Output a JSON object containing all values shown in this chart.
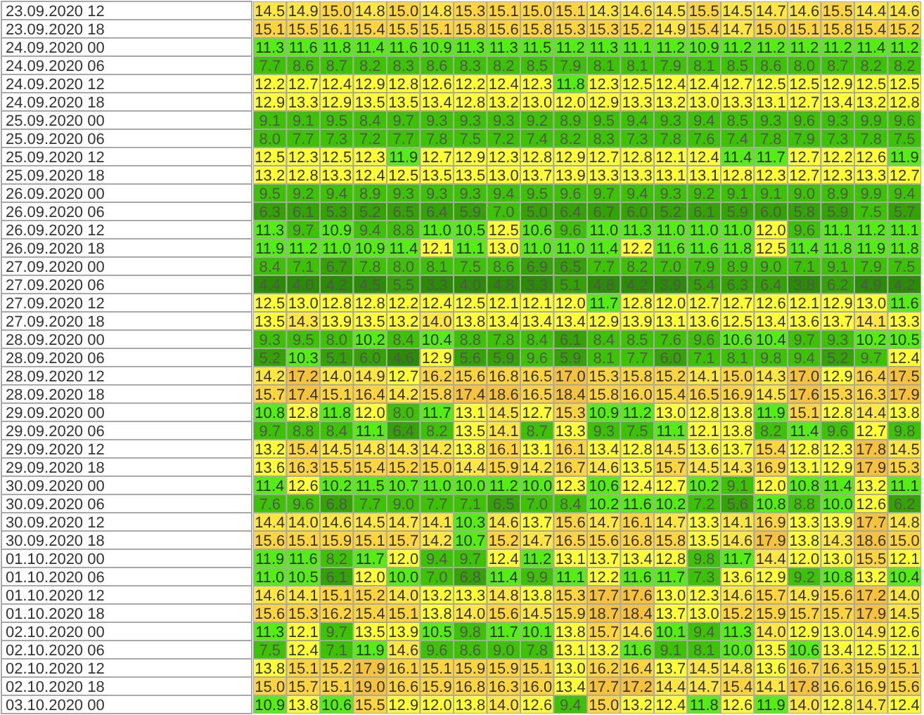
{
  "chart_data": {
    "type": "heatmap",
    "tick_labels": "y",
    "data_labels": true,
    "categories": [
      null,
      null,
      null,
      null,
      null,
      null,
      null,
      null,
      null,
      null,
      null,
      null,
      null,
      null,
      null,
      null,
      null,
      null,
      null,
      null
    ],
    "y_categories": [
      "23.09.2020 12",
      "23.09.2020 18",
      "24.09.2020 00",
      "24.09.2020 06",
      "24.09.2020 12",
      "24.09.2020 18",
      "25.09.2020 00",
      "25.09.2020 06",
      "25.09.2020 12",
      "25.09.2020 18",
      "26.09.2020 00",
      "26.09.2020 06",
      "26.09.2020 12",
      "26.09.2020 18",
      "27.09.2020 00",
      "27.09.2020 06",
      "27.09.2020 12",
      "27.09.2020 18",
      "28.09.2020 00",
      "28.09.2020 06",
      "28.09.2020 12",
      "28.09.2020 18",
      "29.09.2020 00",
      "29.09.2020 06",
      "29.09.2020 12",
      "29.09.2020 18",
      "30.09.2020 00",
      "30.09.2020 06",
      "30.09.2020 12",
      "30.09.2020 18",
      "01.10.2020 00",
      "01.10.2020 06",
      "01.10.2020 12",
      "01.10.2020 18",
      "02.10.2020 00",
      "02.10.2020 06",
      "02.10.2020 12",
      "02.10.2020 18",
      "03.10.2020 00"
    ],
    "cells": [
      [
        14.5,
        14.9,
        15.0,
        14.8,
        15.0,
        14.8,
        15.3,
        15.1,
        15.0,
        15.1,
        14.3,
        14.6,
        14.5,
        15.5,
        14.5,
        14.7,
        14.6,
        15.5,
        14.4,
        14.6
      ],
      [
        15.1,
        15.5,
        16.1,
        15.4,
        15.5,
        15.1,
        15.8,
        15.6,
        15.8,
        15.3,
        15.3,
        15.2,
        14.9,
        15.4,
        14.7,
        15.0,
        15.1,
        15.8,
        15.4,
        15.2
      ],
      [
        11.3,
        11.6,
        11.8,
        11.4,
        11.6,
        10.9,
        11.3,
        11.3,
        11.5,
        11.2,
        11.3,
        11.1,
        11.2,
        10.9,
        11.2,
        11.2,
        11.2,
        11.2,
        11.4,
        11.2
      ],
      [
        7.7,
        8.6,
        8.7,
        8.2,
        8.3,
        8.6,
        8.3,
        8.2,
        8.5,
        7.9,
        8.1,
        8.1,
        7.9,
        8.1,
        8.5,
        8.6,
        8.0,
        8.7,
        8.2,
        8.2
      ],
      [
        12.2,
        12.7,
        12.4,
        12.9,
        12.8,
        12.6,
        12.2,
        12.4,
        12.3,
        11.8,
        12.3,
        12.5,
        12.4,
        12.4,
        12.7,
        12.5,
        12.5,
        12.9,
        12.5,
        12.5
      ],
      [
        12.9,
        13.3,
        12.9,
        13.5,
        13.5,
        13.4,
        12.8,
        13.2,
        13.0,
        12.0,
        12.9,
        13.3,
        13.2,
        13.0,
        13.3,
        13.1,
        12.7,
        13.4,
        13.2,
        12.8
      ],
      [
        9.1,
        9.1,
        9.5,
        8.4,
        9.7,
        9.3,
        9.3,
        9.3,
        9.2,
        8.9,
        9.5,
        9.4,
        9.3,
        9.4,
        8.5,
        9.3,
        9.6,
        9.3,
        9.9,
        9.6
      ],
      [
        8.0,
        7.7,
        7.3,
        7.2,
        7.7,
        7.8,
        7.5,
        7.2,
        7.4,
        8.2,
        8.3,
        7.3,
        7.8,
        7.6,
        7.4,
        7.8,
        7.9,
        7.3,
        7.8,
        7.5
      ],
      [
        12.5,
        12.3,
        12.5,
        12.3,
        11.9,
        12.7,
        12.9,
        12.3,
        12.8,
        12.9,
        12.7,
        12.8,
        12.1,
        12.4,
        11.4,
        11.7,
        12.7,
        12.2,
        12.6,
        11.9
      ],
      [
        13.2,
        12.8,
        13.3,
        12.4,
        12.5,
        13.5,
        13.5,
        13.0,
        13.7,
        13.9,
        13.3,
        13.3,
        13.1,
        13.1,
        12.8,
        12.3,
        12.7,
        12.3,
        13.3,
        12.7
      ],
      [
        9.5,
        9.2,
        9.4,
        8.9,
        9.3,
        9.3,
        9.3,
        9.4,
        9.5,
        9.6,
        9.7,
        9.4,
        9.3,
        9.2,
        9.1,
        9.1,
        9.0,
        8.9,
        9.9,
        9.4
      ],
      [
        6.3,
        6.1,
        5.3,
        5.2,
        6.5,
        6.4,
        5.9,
        7.0,
        5.0,
        6.4,
        6.7,
        6.0,
        5.2,
        6.1,
        5.9,
        6.0,
        5.8,
        5.9,
        7.5,
        5.7
      ],
      [
        11.3,
        9.7,
        10.9,
        9.4,
        8.8,
        11.0,
        10.5,
        12.5,
        10.6,
        9.6,
        11.0,
        11.3,
        11.0,
        11.0,
        11.0,
        12.0,
        9.6,
        11.1,
        11.2,
        11.1
      ],
      [
        11.9,
        11.2,
        11.0,
        10.9,
        11.4,
        12.1,
        11.1,
        13.0,
        11.0,
        11.0,
        11.4,
        12.2,
        11.6,
        11.6,
        11.8,
        12.5,
        11.4,
        11.8,
        11.9,
        11.8
      ],
      [
        8.4,
        7.1,
        6.7,
        7.8,
        8.0,
        8.1,
        7.5,
        8.6,
        6.9,
        6.5,
        7.7,
        8.2,
        7.0,
        7.9,
        8.9,
        9.0,
        7.1,
        9.1,
        7.9,
        7.5
      ],
      [
        4.4,
        4.0,
        4.2,
        4.5,
        5.5,
        3.3,
        4.0,
        4.8,
        3.3,
        5.1,
        4.8,
        4.2,
        3.9,
        5.4,
        6.3,
        6.4,
        3.8,
        6.2,
        4.9,
        4.2
      ],
      [
        12.5,
        13.0,
        12.8,
        12.8,
        12.2,
        12.4,
        12.5,
        12.1,
        12.1,
        12.0,
        11.7,
        12.8,
        12.0,
        12.7,
        12.7,
        12.6,
        12.1,
        12.9,
        13.0,
        11.6
      ],
      [
        13.5,
        14.3,
        13.9,
        13.5,
        13.2,
        14.0,
        13.8,
        13.4,
        13.4,
        13.4,
        12.9,
        13.9,
        13.1,
        13.6,
        12.5,
        13.4,
        13.6,
        13.7,
        14.1,
        13.3
      ],
      [
        9.3,
        9.5,
        8.0,
        10.2,
        8.4,
        10.4,
        8.8,
        7.8,
        8.4,
        6.1,
        8.4,
        8.5,
        7.6,
        9.6,
        10.6,
        10.4,
        9.7,
        9.3,
        10.2,
        10.5
      ],
      [
        5.2,
        10.3,
        5.1,
        6.0,
        4.6,
        12.9,
        5.6,
        5.9,
        9.6,
        5.9,
        8.1,
        7.7,
        6.0,
        7.1,
        8.1,
        9.8,
        9.4,
        5.2,
        9.7,
        12.4
      ],
      [
        14.2,
        17.2,
        14.0,
        14.9,
        12.7,
        16.2,
        15.6,
        16.8,
        16.5,
        17.0,
        15.3,
        15.8,
        15.2,
        14.1,
        15.0,
        14.3,
        17.0,
        12.9,
        16.4,
        17.5
      ],
      [
        15.7,
        17.4,
        15.1,
        16.4,
        14.2,
        15.8,
        17.4,
        18.6,
        16.5,
        18.4,
        15.8,
        16.0,
        15.4,
        16.5,
        16.9,
        14.5,
        17.6,
        15.3,
        16.3,
        17.9
      ],
      [
        10.8,
        12.8,
        11.8,
        12.0,
        8.0,
        11.7,
        13.1,
        14.5,
        12.7,
        15.3,
        10.9,
        11.2,
        13.0,
        12.8,
        13.8,
        11.9,
        15.1,
        12.8,
        14.4,
        13.8
      ],
      [
        9.7,
        8.8,
        8.4,
        11.1,
        6.4,
        8.2,
        13.5,
        14.1,
        8.7,
        13.3,
        9.3,
        7.5,
        11.1,
        12.1,
        13.8,
        8.2,
        11.4,
        9.6,
        12.7,
        9.8
      ],
      [
        13.2,
        15.4,
        14.5,
        14.8,
        14.3,
        14.2,
        13.8,
        16.1,
        13.1,
        16.1,
        13.4,
        12.8,
        14.5,
        13.6,
        13.7,
        15.4,
        12.8,
        12.3,
        17.8,
        14.5
      ],
      [
        13.6,
        16.3,
        15.5,
        15.4,
        15.2,
        15.0,
        14.4,
        15.9,
        14.2,
        16.7,
        14.6,
        13.5,
        15.7,
        14.5,
        14.3,
        16.9,
        13.1,
        12.9,
        17.9,
        15.3
      ],
      [
        11.4,
        12.6,
        10.2,
        11.5,
        10.7,
        11.0,
        10.0,
        11.2,
        10.0,
        12.3,
        10.6,
        12.4,
        12.7,
        10.2,
        9.1,
        12.0,
        10.8,
        11.4,
        13.2,
        11.1
      ],
      [
        7.6,
        9.6,
        6.8,
        7.7,
        9.0,
        7.7,
        7.1,
        6.5,
        7.0,
        8.4,
        10.2,
        11.6,
        10.2,
        7.2,
        5.6,
        10.8,
        8.8,
        10.0,
        12.6,
        6.2
      ],
      [
        14.4,
        14.0,
        14.6,
        14.5,
        14.7,
        14.1,
        10.3,
        14.6,
        13.7,
        15.6,
        14.7,
        16.1,
        14.7,
        13.3,
        14.1,
        16.9,
        13.3,
        13.9,
        17.7,
        14.8
      ],
      [
        15.6,
        15.1,
        15.9,
        15.1,
        15.7,
        14.2,
        10.7,
        15.2,
        14.7,
        16.5,
        15.6,
        16.8,
        15.8,
        13.5,
        14.6,
        17.9,
        13.8,
        14.3,
        18.6,
        15.0
      ],
      [
        11.9,
        11.6,
        8.2,
        11.7,
        12.0,
        9.4,
        9.7,
        12.4,
        11.2,
        13.1,
        13.7,
        13.4,
        12.8,
        9.8,
        11.7,
        14.4,
        12.0,
        13.0,
        15.5,
        12.1
      ],
      [
        11.0,
        10.5,
        6.1,
        12.0,
        10.0,
        7.0,
        6.8,
        11.4,
        9.9,
        11.1,
        12.2,
        11.6,
        11.7,
        7.3,
        13.6,
        12.9,
        9.2,
        10.8,
        13.2,
        10.4
      ],
      [
        14.6,
        14.1,
        15.1,
        15.2,
        14.0,
        13.2,
        13.3,
        14.8,
        13.8,
        15.3,
        17.7,
        17.6,
        13.0,
        12.3,
        14.6,
        15.7,
        14.9,
        15.6,
        17.2,
        14.0
      ],
      [
        15.6,
        15.3,
        16.2,
        15.4,
        15.1,
        13.8,
        14.0,
        15.6,
        14.5,
        15.9,
        18.7,
        18.4,
        13.7,
        13.0,
        15.2,
        15.9,
        15.7,
        15.7,
        17.9,
        14.5
      ],
      [
        11.3,
        12.1,
        9.7,
        13.5,
        13.9,
        10.5,
        9.8,
        11.7,
        10.1,
        13.8,
        15.7,
        14.6,
        10.1,
        9.4,
        11.3,
        14.0,
        12.9,
        13.0,
        14.9,
        12.6
      ],
      [
        7.5,
        12.4,
        7.1,
        11.9,
        14.6,
        9.6,
        8.6,
        9.0,
        7.8,
        13.1,
        13.2,
        11.6,
        9.1,
        8.1,
        10.0,
        13.5,
        10.6,
        13.4,
        12.5,
        12.1
      ],
      [
        13.8,
        15.1,
        15.2,
        17.9,
        16.1,
        15.1,
        15.9,
        15.9,
        15.1,
        13.0,
        16.2,
        16.4,
        13.7,
        14.5,
        14.8,
        13.6,
        16.7,
        16.3,
        15.9,
        15.1
      ],
      [
        15.0,
        15.7,
        15.1,
        19.0,
        16.6,
        15.9,
        16.8,
        16.3,
        16.0,
        13.4,
        17.7,
        17.2,
        14.4,
        14.7,
        15.4,
        14.1,
        17.8,
        16.6,
        16.9,
        15.6
      ],
      [
        10.9,
        13.8,
        10.6,
        15.5,
        12.9,
        12.0,
        13.8,
        14.0,
        12.6,
        9.4,
        15.0,
        13.2,
        12.4,
        11.8,
        12.6,
        11.9,
        14.0,
        12.8,
        14.7,
        12.4
      ]
    ],
    "cell_labels": [
      [
        "14.5",
        "14.9",
        "15.0",
        "14.8",
        "15.0",
        "14.8",
        "15.3",
        "15.1",
        "15.0",
        "15.1",
        "14.3",
        "14.6",
        "14.5",
        "15.5",
        "14.5",
        "14.7",
        "14.6",
        "15.5",
        "14.4",
        "14.6"
      ],
      [
        "15.1",
        "15.5",
        "16.1",
        "15.4",
        "15.5",
        "15.1",
        "15.8",
        "15.6",
        "15.8",
        "15.3",
        "15.3",
        "15.2",
        "14.9",
        "15.4",
        "14.7",
        "15.0",
        "15.1",
        "15.8",
        "15.4",
        "15.2"
      ],
      [
        "11.3",
        "11.6",
        "11.8",
        "11.4",
        "11.6",
        "10.9",
        "11.3",
        "11.3",
        "11.5",
        "11.2",
        "11.3",
        "11.1",
        "11.2",
        "10.9",
        "11.2",
        "11.2",
        "11.2",
        "11.2",
        "11.4",
        "11.2"
      ],
      [
        "7.7",
        "8.6",
        "8.7",
        "8.2",
        "8.3",
        "8.6",
        "8.3",
        "8.2",
        "8.5",
        "7.9",
        "8.1",
        "8.1",
        "7.9",
        "8.1",
        "8.5",
        "8.6",
        "8.0",
        "8.7",
        "8.2",
        "8.2"
      ],
      [
        "12.2",
        "12.7",
        "12.4",
        "12.9",
        "12.8",
        "12.6",
        "12.2",
        "12.4",
        "12.3",
        "11.8",
        "12.3",
        "12.5",
        "12.4",
        "12.4",
        "12.7",
        "12.5",
        "12.5",
        "12.9",
        "12.5",
        "12.5"
      ],
      [
        "12.9",
        "13.3",
        "12.9",
        "13.5",
        "13.5",
        "13.4",
        "12.8",
        "13.2",
        "13.0",
        "12.0",
        "12.9",
        "13.3",
        "13.2",
        "13.0",
        "13.3",
        "13.1",
        "12.7",
        "13.4",
        "13.2",
        "12.8"
      ],
      [
        "9.1",
        "9.1",
        "9.5",
        "8.4",
        "9.7",
        "9.3",
        "9.3",
        "9.3",
        "9.2",
        "8.9",
        "9.5",
        "9.4",
        "9.3",
        "9.4",
        "8.5",
        "9.3",
        "9.6",
        "9.3",
        "9.9",
        "9.6"
      ],
      [
        "8.0",
        "7.7",
        "7.3",
        "7.2",
        "7.7",
        "7.8",
        "7.5",
        "7.2",
        "7.4",
        "8.2",
        "8.3",
        "7.3",
        "7.8",
        "7.6",
        "7.4",
        "7.8",
        "7.9",
        "7.3",
        "7.8",
        "7.5"
      ],
      [
        "12.5",
        "12.3",
        "12.5",
        "12.3",
        "11.9",
        "12.7",
        "12.9",
        "12.3",
        "12.8",
        "12.9",
        "12.7",
        "12.8",
        "12.1",
        "12.4",
        "11.4",
        "11.7",
        "12.7",
        "12.2",
        "12.6",
        "11.9"
      ],
      [
        "13.2",
        "12.8",
        "13.3",
        "12.4",
        "12.5",
        "13.5",
        "13.5",
        "13.0",
        "13.7",
        "13.9",
        "13.3",
        "13.3",
        "13.1",
        "13.1",
        "12.8",
        "12.3",
        "12.7",
        "12.3",
        "13.3",
        "12.7"
      ],
      [
        "9.5",
        "9.2",
        "9.4",
        "8.9",
        "9.3",
        "9.3",
        "9.3",
        "9.4",
        "9.5",
        "9.6",
        "9.7",
        "9.4",
        "9.3",
        "9.2",
        "9.1",
        "9.1",
        "9.0",
        "8.9",
        "9.9",
        "9.4"
      ],
      [
        "6.3",
        "6.1",
        "5.3",
        "5.2",
        "6.5",
        "6.4",
        "5.9",
        "7.0",
        "5.0",
        "6.4",
        "6.7",
        "6.0",
        "5.2",
        "6.1",
        "5.9",
        "6.0",
        "5.8",
        "5.9",
        "7.5",
        "5.7"
      ],
      [
        "11.3",
        "9.7",
        "10.9",
        "9.4",
        "8.8",
        "11.0",
        "10.5",
        "12.5",
        "10.6",
        "9.6",
        "11.0",
        "11.3",
        "11.0",
        "11.0",
        "11.0",
        "12.0",
        "9.6",
        "11.1",
        "11.2",
        "11.1"
      ],
      [
        "11.9",
        "11.2",
        "11.0",
        "10.9",
        "11.4",
        "12.1",
        "11.1",
        "13.0",
        "11.0",
        "11.0",
        "11.4",
        "12.2",
        "11.6",
        "11.6",
        "11.8",
        "12.5",
        "11.4",
        "11.8",
        "11.9",
        "11.8"
      ],
      [
        "8.4",
        "7.1",
        "6.7",
        "7.8",
        "8.0",
        "8.1",
        "7.5",
        "8.6",
        "6.9",
        "6.5",
        "7.7",
        "8.2",
        "7.0",
        "7.9",
        "8.9",
        "9.0",
        "7.1",
        "9.1",
        "7.9",
        "7.5"
      ],
      [
        "4.4",
        "4.0",
        "4.2",
        "4.5",
        "5.5",
        "3.3",
        "4.0",
        "4.8",
        "3.3",
        "5.1",
        "4.8",
        "4.2",
        "3.9",
        "5.4",
        "6.3",
        "6.4",
        "3.8",
        "6.2",
        "4.9",
        "4.2"
      ],
      [
        "12.5",
        "13.0",
        "12.8",
        "12.8",
        "12.2",
        "12.4",
        "12.5",
        "12.1",
        "12.1",
        "12.0",
        "11.7",
        "12.8",
        "12.0",
        "12.7",
        "12.7",
        "12.6",
        "12.1",
        "12.9",
        "13.0",
        "11.6"
      ],
      [
        "13.5",
        "14.3",
        "13.9",
        "13.5",
        "13.2",
        "14.0",
        "13.8",
        "13.4",
        "13.4",
        "13.4",
        "12.9",
        "13.9",
        "13.1",
        "13.6",
        "12.5",
        "13.4",
        "13.6",
        "13.7",
        "14.1",
        "13.3"
      ],
      [
        "9.3",
        "9.5",
        "8.0",
        "10.2",
        "8.4",
        "10.4",
        "8.8",
        "7.8",
        "8.4",
        "6.1",
        "8.4",
        "8.5",
        "7.6",
        "9.6",
        "10.6",
        "10.4",
        "9.7",
        "9.3",
        "10.2",
        "10.5"
      ],
      [
        "5.2",
        "10.3",
        "5.1",
        "6.0",
        "4.6",
        "12.9",
        "5.6",
        "5.9",
        "9.6",
        "5.9",
        "8.1",
        "7.7",
        "6.0",
        "7.1",
        "8.1",
        "9.8",
        "9.4",
        "5.2",
        "9.7",
        "12.4"
      ],
      [
        "14.2",
        "17.2",
        "14.0",
        "14.9",
        "12.7",
        "16.2",
        "15.6",
        "16.8",
        "16.5",
        "17.0",
        "15.3",
        "15.8",
        "15.2",
        "14.1",
        "15.0",
        "14.3",
        "17.0",
        "12.9",
        "16.4",
        "17.5"
      ],
      [
        "15.7",
        "17.4",
        "15.1",
        "16.4",
        "14.2",
        "15.8",
        "17.4",
        "18.6",
        "16.5",
        "18.4",
        "15.8",
        "16.0",
        "15.4",
        "16.5",
        "16.9",
        "14.5",
        "17.6",
        "15.3",
        "16.3",
        "17.9"
      ],
      [
        "10.8",
        "12.8",
        "11.8",
        "12.0",
        "8.0",
        "11.7",
        "13.1",
        "14.5",
        "12.7",
        "15.3",
        "10.9",
        "11.2",
        "13.0",
        "12.8",
        "13.8",
        "11.9",
        "15.1",
        "12.8",
        "14.4",
        "13.8"
      ],
      [
        "9.7",
        "8.8",
        "8.4",
        "11.1",
        "6.4",
        "8.2",
        "13.5",
        "14.1",
        "8.7",
        "13.3",
        "9.3",
        "7.5",
        "11.1",
        "12.1",
        "13.8",
        "8.2",
        "11.4",
        "9.6",
        "12.7",
        "9.8"
      ],
      [
        "13.2",
        "15.4",
        "14.5",
        "14.8",
        "14.3",
        "14.2",
        "13.8",
        "16.1",
        "13.1",
        "16.1",
        "13.4",
        "12.8",
        "14.5",
        "13.6",
        "13.7",
        "15.4",
        "12.8",
        "12.3",
        "17.8",
        "14.5"
      ],
      [
        "13.6",
        "16.3",
        "15.5",
        "15.4",
        "15.2",
        "15.0",
        "14.4",
        "15.9",
        "14.2",
        "16.7",
        "14.6",
        "13.5",
        "15.7",
        "14.5",
        "14.3",
        "16.9",
        "13.1",
        "12.9",
        "17.9",
        "15.3"
      ],
      [
        "11.4",
        "12.6",
        "10.2",
        "11.5",
        "10.7",
        "11.0",
        "10.0",
        "11.2",
        "10.0",
        "12.3",
        "10.6",
        "12.4",
        "12.7",
        "10.2",
        "9.1",
        "12.0",
        "10.8",
        "11.4",
        "13.2",
        "11.1"
      ],
      [
        "7.6",
        "9.6",
        "6.8",
        "7.7",
        "9.0",
        "7.7",
        "7.1",
        "6.5",
        "7.0",
        "8.4",
        "10.2",
        "11.6",
        "10.2",
        "7.2",
        "5.6",
        "10.8",
        "8.8",
        "10.0",
        "12.6",
        "6.2"
      ],
      [
        "14.4",
        "14.0",
        "14.6",
        "14.5",
        "14.7",
        "14.1",
        "10.3",
        "14.6",
        "13.7",
        "15.6",
        "14.7",
        "16.1",
        "14.7",
        "13.3",
        "14.1",
        "16.9",
        "13.3",
        "13.9",
        "17.7",
        "14.8"
      ],
      [
        "15.6",
        "15.1",
        "15.9",
        "15.1",
        "15.7",
        "14.2",
        "10.7",
        "15.2",
        "14.7",
        "16.5",
        "15.6",
        "16.8",
        "15.8",
        "13.5",
        "14.6",
        "17.9",
        "13.8",
        "14.3",
        "18.6",
        "15.0"
      ],
      [
        "11.9",
        "11.6",
        "8.2",
        "11.7",
        "12.0",
        "9.4",
        "9.7",
        "12.4",
        "11.2",
        "13.1",
        "13.7",
        "13.4",
        "12.8",
        "9.8",
        "11.7",
        "14.4",
        "12.0",
        "13.0",
        "15.5",
        "12.1"
      ],
      [
        "11.0",
        "10.5",
        "6.1",
        "12.0",
        "10.0",
        "7.0",
        "6.8",
        "11.4",
        "9.9",
        "11.1",
        "12.2",
        "11.6",
        "11.7",
        "7.3",
        "13.6",
        "12.9",
        "9.2",
        "10.8",
        "13.2",
        "10.4"
      ],
      [
        "14.6",
        "14.1",
        "15.1",
        "15.2",
        "14.0",
        "13.2",
        "13.3",
        "14.8",
        "13.8",
        "15.3",
        "17.7",
        "17.6",
        "13.0",
        "12.3",
        "14.6",
        "15.7",
        "14.9",
        "15.6",
        "17.2",
        "14.0"
      ],
      [
        "15.6",
        "15.3",
        "16.2",
        "15.4",
        "15.1",
        "13.8",
        "14.0",
        "15.6",
        "14.5",
        "15.9",
        "18.7",
        "18.4",
        "13.7",
        "13.0",
        "15.2",
        "15.9",
        "15.7",
        "15.7",
        "17.9",
        "14.5"
      ],
      [
        "11.3",
        "12.1",
        "9.7",
        "13.5",
        "13.9",
        "10.5",
        "9.8",
        "11.7",
        "10.1",
        "13.8",
        "15.7",
        "14.6",
        "10.1",
        "9.4",
        "11.3",
        "14.0",
        "12.9",
        "13.0",
        "14.9",
        "12.6"
      ],
      [
        "7.5",
        "12.4",
        "7.1",
        "11.9",
        "14.6",
        "9.6",
        "8.6",
        "9.0",
        "7.8",
        "13.1",
        "13.2",
        "11.6",
        "9.1",
        "8.1",
        "10.0",
        "13.5",
        "10.6",
        "13.4",
        "12.5",
        "12.1"
      ],
      [
        "13.8",
        "15.1",
        "15.2",
        "17.9",
        "16.1",
        "15.1",
        "15.9",
        "15.9",
        "15.1",
        "13.0",
        "16.2",
        "16.4",
        "13.7",
        "14.5",
        "14.8",
        "13.6",
        "16.7",
        "16.3",
        "15.9",
        "15.1"
      ],
      [
        "15.0",
        "15.7",
        "15.1",
        "19.0",
        "16.6",
        "15.9",
        "16.8",
        "16.3",
        "16.0",
        "13.4",
        "17.7",
        "17.2",
        "14.4",
        "14.7",
        "15.4",
        "14.1",
        "17.8",
        "16.6",
        "16.9",
        "15.6"
      ],
      [
        "10.9",
        "13.8",
        "10.6",
        "15.5",
        "12.9",
        "12.0",
        "13.8",
        "14.0",
        "12.6",
        "9.4",
        "15.0",
        "13.2",
        "12.4",
        "11.8",
        "12.6",
        "11.9",
        "14.0",
        "12.8",
        "14.7",
        "12.4"
      ]
    ]
  }
}
